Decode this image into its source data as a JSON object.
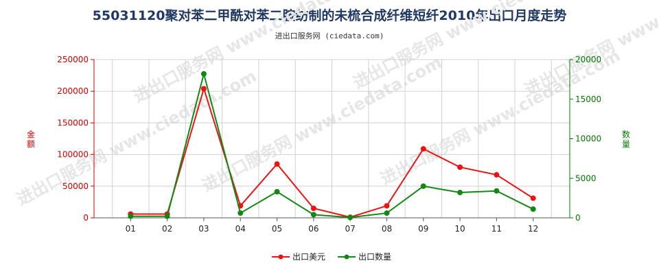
{
  "chart_data": {
    "type": "line",
    "title": "55031120聚对苯二甲酰对苯二胺纺制的未梳合成纤维短纤2010年出口月度走势",
    "subtitle": "进出口服务网 (ciedata.com)",
    "watermark": "进出口服务网 www.ciedata.com",
    "categories": [
      "01",
      "02",
      "03",
      "04",
      "05",
      "06",
      "07",
      "08",
      "09",
      "10",
      "11",
      "12"
    ],
    "y_left": {
      "label": "金额",
      "min": 0,
      "max": 250000,
      "ticks": [
        "0",
        "50000",
        "100000",
        "150000",
        "200000",
        "250000"
      ],
      "color": "#cc0000"
    },
    "y_right": {
      "label": "数量",
      "min": 0,
      "max": 20000,
      "ticks": [
        "0",
        "5000",
        "10000",
        "15000",
        "20000"
      ],
      "color": "#007700"
    },
    "grid": true,
    "legend_position": "bottom-center",
    "series": [
      {
        "name": "出口美元",
        "axis": "left",
        "color": "#ee1111",
        "values": [
          6000,
          6000,
          204000,
          19000,
          85000,
          15000,
          1000,
          19000,
          109000,
          80000,
          68000,
          31000
        ]
      },
      {
        "name": "出口数量",
        "axis": "right",
        "color": "#118811",
        "values": [
          200,
          200,
          18200,
          600,
          3300,
          400,
          50,
          600,
          4000,
          3200,
          3400,
          1100
        ]
      }
    ]
  }
}
